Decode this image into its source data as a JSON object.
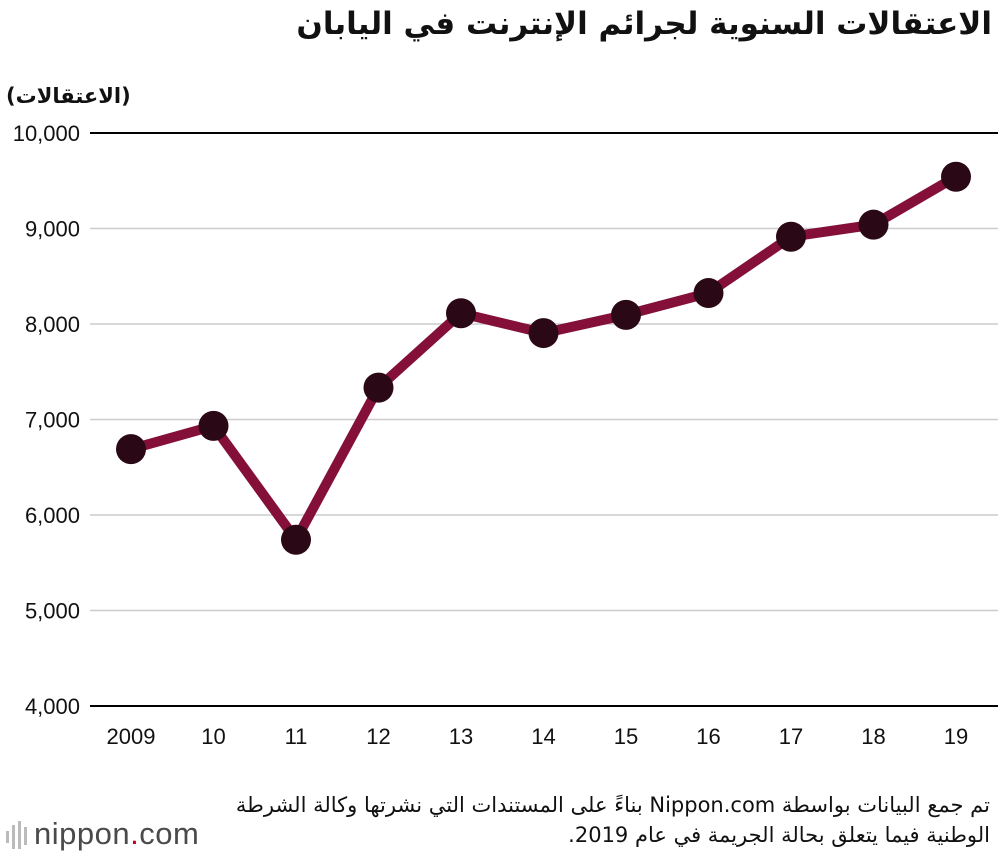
{
  "title": "الاعتقالات السنوية لجرائم الإنترنت في اليابان",
  "footnote": "تم جمع البيانات بواسطة Nippon.com بناءً على المستندات التي نشرتها وكالة الشرطة الوطنية فيما يتعلق بحالة الجريمة في عام 2019.",
  "logo": {
    "part1": "nippon",
    "dot": ".",
    "part2": "com"
  },
  "colors": {
    "line": "#84103a",
    "marker": "#2b0816",
    "grid": "#cccccc",
    "axis": "#000000"
  },
  "chart_data": {
    "type": "line",
    "title": "الاعتقالات السنوية لجرائم الإنترنت في اليابان",
    "ylabel": "(الاعتقالات)",
    "xlabel": "",
    "categories": [
      "2009",
      "10",
      "11",
      "12",
      "13",
      "14",
      "15",
      "16",
      "17",
      "18",
      "19"
    ],
    "values": [
      6690,
      6933,
      5741,
      7334,
      8113,
      7905,
      8096,
      8324,
      8914,
      9040,
      9542
    ],
    "ylim": [
      4000,
      10000
    ],
    "yticks": [
      4000,
      5000,
      6000,
      7000,
      8000,
      9000,
      10000
    ],
    "ytick_labels": [
      "4,000",
      "5,000",
      "6,000",
      "7,000",
      "8,000",
      "9,000",
      "10,000"
    ],
    "grid": true,
    "legend": "none"
  }
}
